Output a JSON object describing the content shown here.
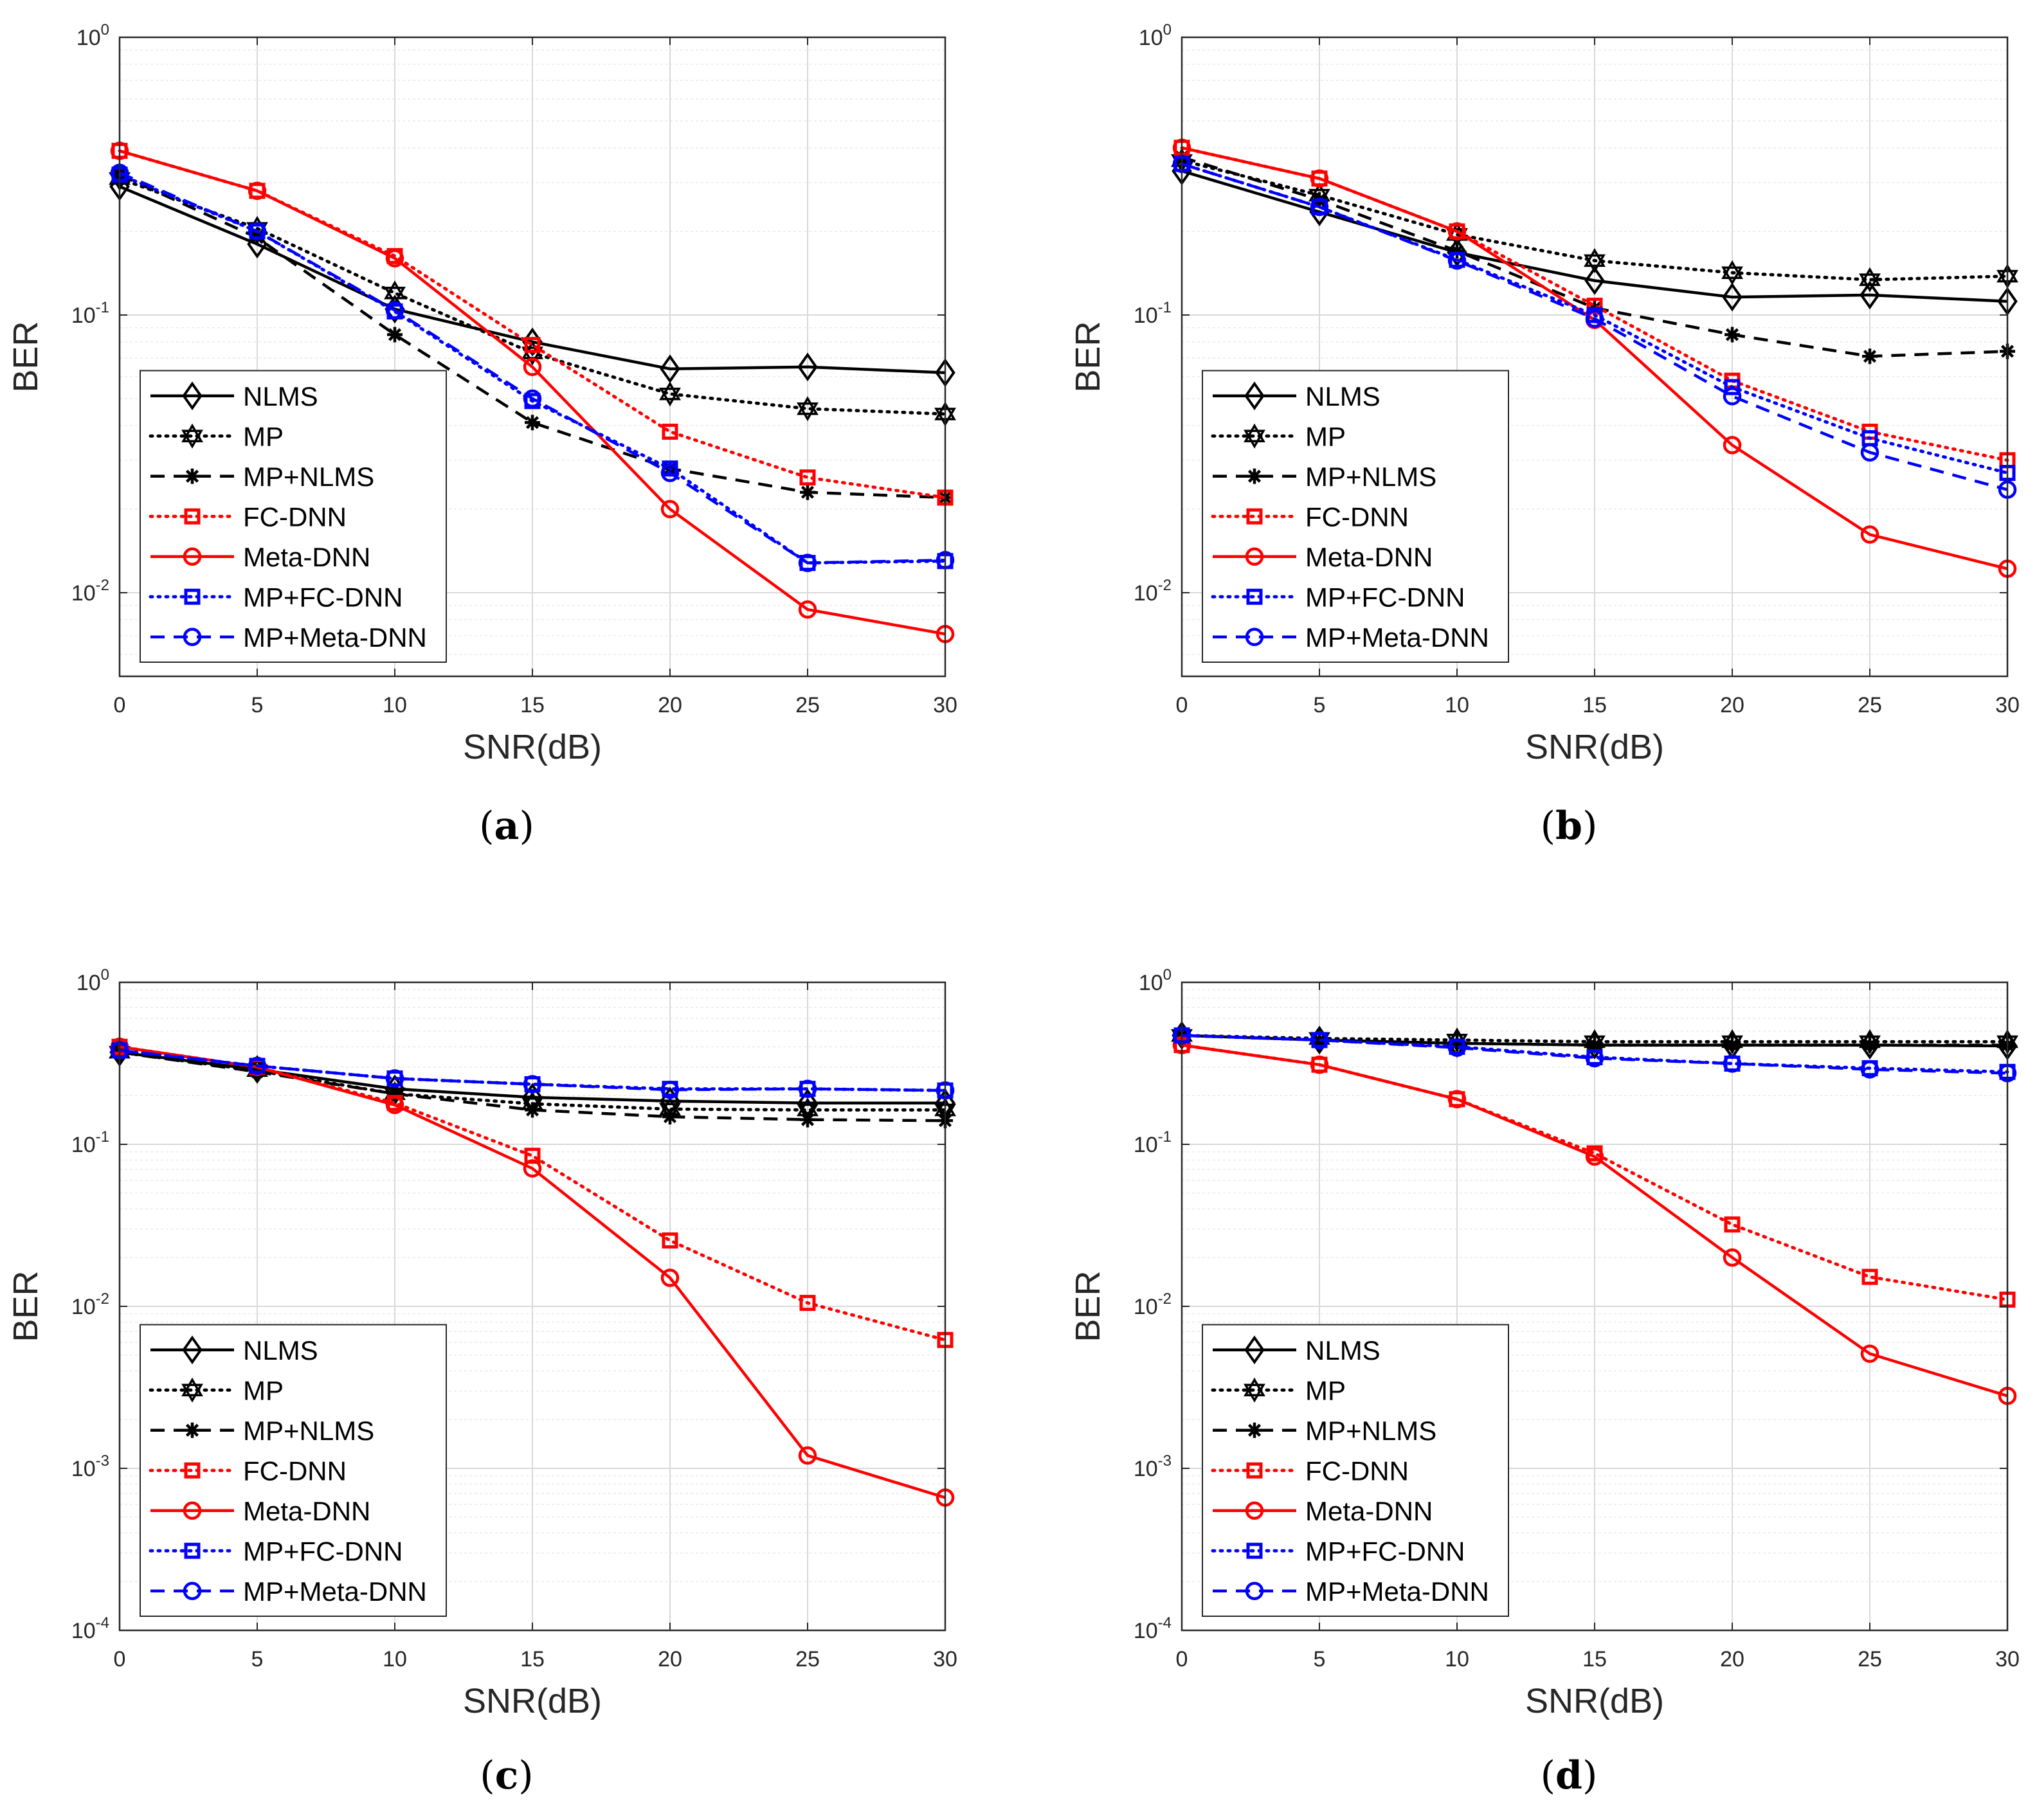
{
  "figure": {
    "subfigures": [
      "a",
      "b",
      "c",
      "d"
    ]
  },
  "styles": {
    "NLMS": {
      "color": "#000000",
      "dash": "solid",
      "marker": "diamond"
    },
    "MP": {
      "color": "#000000",
      "dash": "dotted",
      "marker": "hexagram"
    },
    "MP+NLMS": {
      "color": "#000000",
      "dash": "dashed",
      "marker": "asterisk"
    },
    "FC-DNN": {
      "color": "#ff0000",
      "dash": "dotted",
      "marker": "square"
    },
    "Meta-DNN": {
      "color": "#ff0000",
      "dash": "solid",
      "marker": "circle"
    },
    "MP+FC-DNN": {
      "color": "#0000ff",
      "dash": "dotted",
      "marker": "square"
    },
    "MP+Meta-DNN": {
      "color": "#0000ff",
      "dash": "dashed",
      "marker": "circle"
    }
  },
  "chart_data": [
    {
      "panel": "a",
      "caption": "(a)",
      "type": "line",
      "yscale": "log",
      "xlabel": "SNR(dB)",
      "ylabel": "BER",
      "xlim": [
        0,
        30
      ],
      "ylim": [
        0.005,
        1
      ],
      "xticks": [
        "0",
        "5",
        "10",
        "15",
        "20",
        "25",
        "30"
      ],
      "ytick_exponents": [
        "0",
        "-1",
        "-2"
      ],
      "grid": true,
      "legend_position": "bottom-left",
      "x": [
        0,
        5,
        10,
        15,
        20,
        25,
        30
      ],
      "series": [
        {
          "name": "NLMS",
          "values": [
            0.29,
            0.18,
            0.105,
            0.08,
            0.064,
            0.065,
            0.062
          ]
        },
        {
          "name": "MP",
          "values": [
            0.31,
            0.205,
            0.12,
            0.073,
            0.052,
            0.046,
            0.044
          ]
        },
        {
          "name": "MP+NLMS",
          "values": [
            0.32,
            0.19,
            0.085,
            0.041,
            0.028,
            0.023,
            0.022
          ]
        },
        {
          "name": "FC-DNN",
          "values": [
            0.39,
            0.28,
            0.163,
            0.078,
            0.038,
            0.026,
            0.022
          ]
        },
        {
          "name": "Meta-DNN",
          "values": [
            0.39,
            0.28,
            0.16,
            0.065,
            0.02,
            0.0087,
            0.0071
          ]
        },
        {
          "name": "MP+FC-DNN",
          "values": [
            0.32,
            0.2,
            0.103,
            0.049,
            0.028,
            0.0128,
            0.013
          ]
        },
        {
          "name": "MP+Meta-DNN",
          "values": [
            0.325,
            0.2,
            0.104,
            0.05,
            0.027,
            0.0128,
            0.0131
          ]
        }
      ]
    },
    {
      "panel": "b",
      "caption": "(b)",
      "type": "line",
      "yscale": "log",
      "xlabel": "SNR(dB)",
      "ylabel": "BER",
      "xlim": [
        0,
        30
      ],
      "ylim": [
        0.005,
        1
      ],
      "xticks": [
        "0",
        "5",
        "10",
        "15",
        "20",
        "25",
        "30"
      ],
      "ytick_exponents": [
        "0",
        "-1",
        "-2"
      ],
      "grid": true,
      "legend_position": "bottom-left",
      "x": [
        0,
        5,
        10,
        15,
        20,
        25,
        30
      ],
      "series": [
        {
          "name": "NLMS",
          "values": [
            0.33,
            0.235,
            0.168,
            0.133,
            0.116,
            0.118,
            0.112
          ]
        },
        {
          "name": "MP",
          "values": [
            0.36,
            0.27,
            0.195,
            0.157,
            0.142,
            0.134,
            0.138
          ]
        },
        {
          "name": "MP+NLMS",
          "values": [
            0.37,
            0.26,
            0.17,
            0.106,
            0.085,
            0.071,
            0.074
          ]
        },
        {
          "name": "FC-DNN",
          "values": [
            0.4,
            0.31,
            0.2,
            0.108,
            0.058,
            0.038,
            0.03
          ]
        },
        {
          "name": "Meta-DNN",
          "values": [
            0.4,
            0.31,
            0.2,
            0.096,
            0.034,
            0.0162,
            0.0122
          ]
        },
        {
          "name": "MP+FC-DNN",
          "values": [
            0.35,
            0.245,
            0.158,
            0.1,
            0.055,
            0.036,
            0.027
          ]
        },
        {
          "name": "MP+Meta-DNN",
          "values": [
            0.35,
            0.245,
            0.157,
            0.097,
            0.051,
            0.032,
            0.0235
          ]
        }
      ]
    },
    {
      "panel": "c",
      "caption": "(c)",
      "type": "line",
      "yscale": "log",
      "xlabel": "SNR(dB)",
      "ylabel": "BER",
      "xlim": [
        0,
        30
      ],
      "ylim": [
        0.0001,
        1
      ],
      "xticks": [
        "0",
        "5",
        "10",
        "15",
        "20",
        "25",
        "30"
      ],
      "ytick_exponents": [
        "0",
        "-1",
        "-2",
        "-3",
        "-4"
      ],
      "grid": true,
      "legend_position": "bottom-left",
      "x": [
        0,
        5,
        10,
        15,
        20,
        25,
        30
      ],
      "series": [
        {
          "name": "NLMS",
          "values": [
            0.37,
            0.29,
            0.22,
            0.195,
            0.185,
            0.18,
            0.18
          ]
        },
        {
          "name": "MP",
          "values": [
            0.37,
            0.285,
            0.205,
            0.178,
            0.165,
            0.163,
            0.163
          ]
        },
        {
          "name": "MP+NLMS",
          "values": [
            0.37,
            0.28,
            0.205,
            0.163,
            0.148,
            0.142,
            0.14
          ]
        },
        {
          "name": "FC-DNN",
          "values": [
            0.4,
            0.3,
            0.18,
            0.085,
            0.0255,
            0.0105,
            0.0062
          ]
        },
        {
          "name": "Meta-DNN",
          "values": [
            0.4,
            0.3,
            0.175,
            0.071,
            0.015,
            0.0012,
            0.00066
          ]
        },
        {
          "name": "MP+FC-DNN",
          "values": [
            0.38,
            0.305,
            0.255,
            0.235,
            0.22,
            0.22,
            0.215
          ]
        },
        {
          "name": "MP+Meta-DNN",
          "values": [
            0.38,
            0.305,
            0.255,
            0.235,
            0.217,
            0.22,
            0.215
          ]
        }
      ]
    },
    {
      "panel": "d",
      "caption": "(d)",
      "type": "line",
      "yscale": "log",
      "xlabel": "SNR(dB)",
      "ylabel": "BER",
      "xlim": [
        0,
        30
      ],
      "ylim": [
        0.0001,
        1
      ],
      "xticks": [
        "0",
        "5",
        "10",
        "15",
        "20",
        "25",
        "30"
      ],
      "ytick_exponents": [
        "0",
        "-1",
        "-2",
        "-3",
        "-4"
      ],
      "grid": true,
      "legend_position": "bottom-left",
      "x": [
        0,
        5,
        10,
        15,
        20,
        25,
        30
      ],
      "series": [
        {
          "name": "NLMS",
          "values": [
            0.47,
            0.44,
            0.42,
            0.41,
            0.41,
            0.41,
            0.405
          ]
        },
        {
          "name": "MP",
          "values": [
            0.47,
            0.45,
            0.44,
            0.43,
            0.43,
            0.43,
            0.43
          ]
        },
        {
          "name": "MP+NLMS",
          "values": [
            0.47,
            0.44,
            0.42,
            0.41,
            0.41,
            0.41,
            0.41
          ]
        },
        {
          "name": "FC-DNN",
          "values": [
            0.41,
            0.31,
            0.19,
            0.088,
            0.032,
            0.0152,
            0.011
          ]
        },
        {
          "name": "Meta-DNN",
          "values": [
            0.41,
            0.31,
            0.19,
            0.084,
            0.02,
            0.0051,
            0.0028
          ]
        },
        {
          "name": "MP+FC-DNN",
          "values": [
            0.47,
            0.44,
            0.4,
            0.345,
            0.315,
            0.295,
            0.28
          ]
        },
        {
          "name": "MP+Meta-DNN",
          "values": [
            0.47,
            0.44,
            0.395,
            0.34,
            0.315,
            0.29,
            0.275
          ]
        }
      ]
    }
  ]
}
